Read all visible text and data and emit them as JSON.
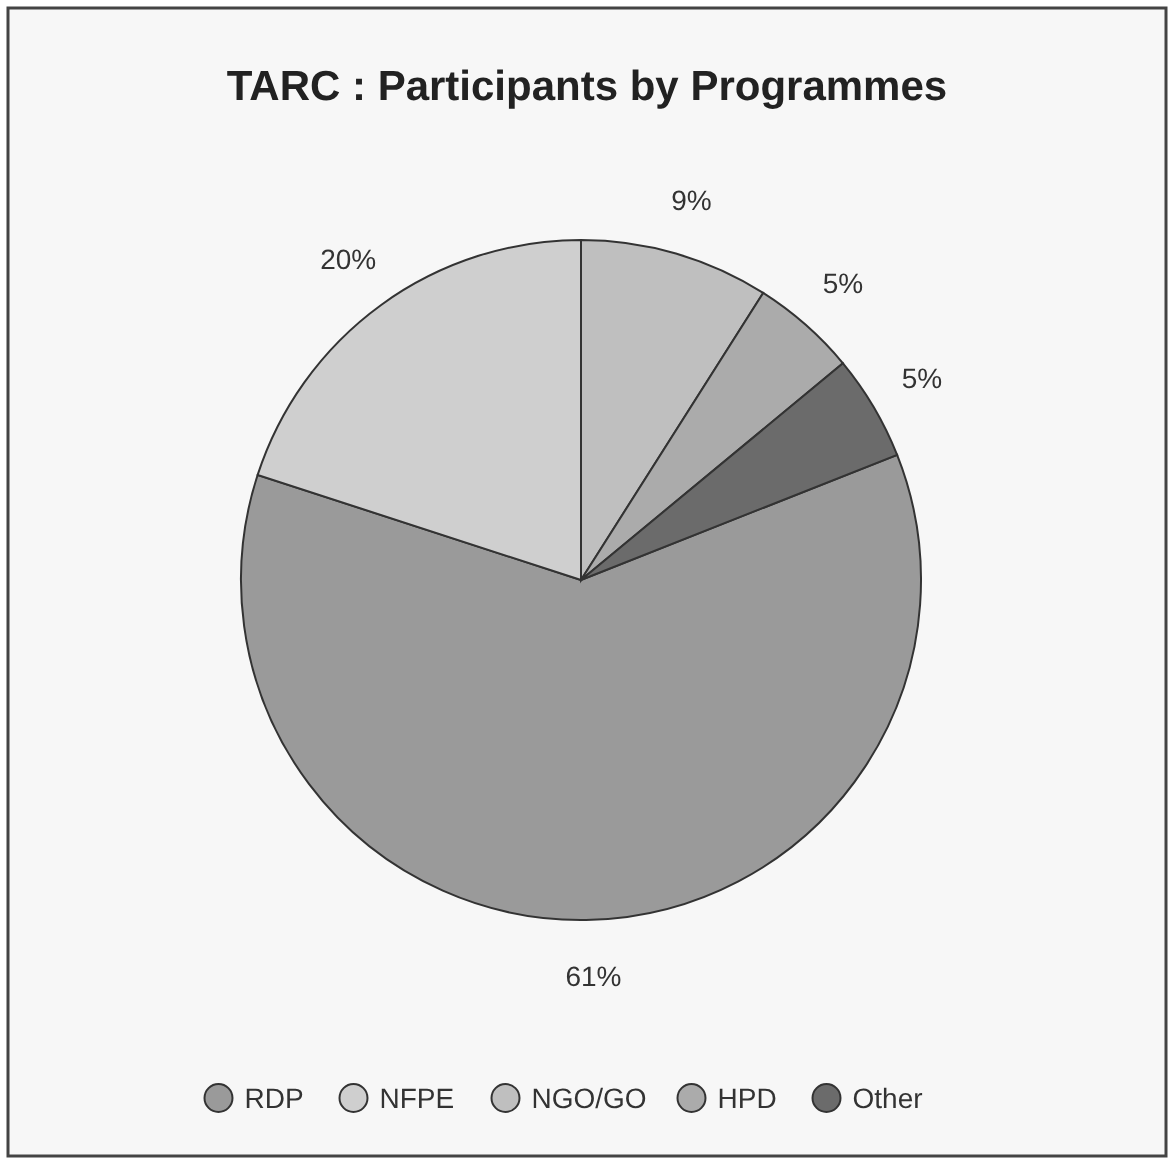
{
  "chart_data": {
    "type": "pie",
    "title": "TARC : Participants by Programmes",
    "categories": [
      "RDP",
      "NFPE",
      "NGO/GO",
      "HPD",
      "Other"
    ],
    "values": [
      61,
      20,
      9,
      5,
      5
    ],
    "colors": [
      "#9a9a9a",
      "#cfcfcf",
      "#bfbfbf",
      "#ababab",
      "#6b6b6b"
    ],
    "value_labels": [
      "61%",
      "20%",
      "9%",
      "5%",
      "5%"
    ],
    "legend": "bottom"
  }
}
